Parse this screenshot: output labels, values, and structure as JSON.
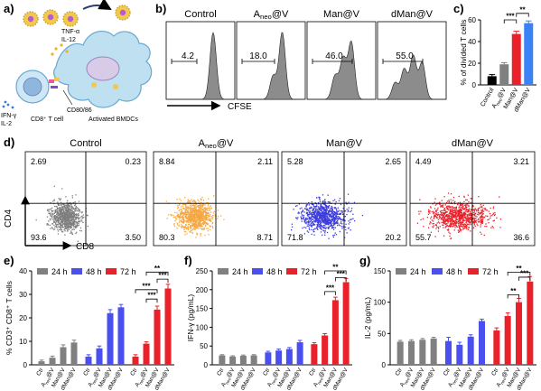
{
  "panel_labels": [
    "a)",
    "b)",
    "c)",
    "d)",
    "e)",
    "f)",
    "g)"
  ],
  "schematic": {
    "labels": {
      "tnf": "TNF-α",
      "il12": "IL-12",
      "ifng": "IFN-γ",
      "il2": "IL-2",
      "cd8t": "CD8⁺ T cell",
      "cd80": "CD80/86",
      "bmdc": "Activated BMDCs"
    }
  },
  "histograms": {
    "axis_label": "CFSE",
    "panels": [
      {
        "title": "Control",
        "pct": "4.2"
      },
      {
        "title": "Aneo@V",
        "pct": "18.0"
      },
      {
        "title": "Man@V",
        "pct": "46.0"
      },
      {
        "title": "dMan@V",
        "pct": "55.0"
      }
    ]
  },
  "scatter": {
    "x_label": "CD8",
    "y_label": "CD4",
    "panels": [
      {
        "title": "Control",
        "color": "#7f7f7f",
        "q": [
          "2.69",
          "0.23",
          "93.6",
          "3.50"
        ]
      },
      {
        "title": "Aneo@V",
        "color": "#f5a742",
        "q": [
          "8.84",
          "2.11",
          "80.3",
          "8.71"
        ]
      },
      {
        "title": "Man@V",
        "color": "#3b3bde",
        "q": [
          "5.28",
          "2.65",
          "71.8",
          "20.2"
        ]
      },
      {
        "title": "dMan@V",
        "color": "#e8212a",
        "q": [
          "4.49",
          "3.21",
          "55.7",
          "36.6"
        ]
      }
    ]
  },
  "chart_data": [
    {
      "id": "c",
      "type": "bar",
      "ylabel": "% of divided T cells",
      "ylim": [
        0,
        60
      ],
      "yticks": [
        0,
        20,
        40,
        60
      ],
      "categories": [
        "Control",
        "Aneo@V",
        "Man@V",
        "dMan@V"
      ],
      "values": [
        8,
        19,
        47,
        57
      ],
      "errors": [
        1.5,
        1.5,
        2.5,
        2
      ],
      "colors": [
        "#000000",
        "#808080",
        "#e8212a",
        "#3b82f6"
      ],
      "significance": [
        "***",
        "**"
      ]
    },
    {
      "id": "e",
      "type": "bar",
      "ylabel": "% CD3⁺ CD8⁺ T cells",
      "ylim": [
        0,
        40
      ],
      "yticks": [
        0,
        10,
        20,
        30,
        40
      ],
      "legend": [
        "24 h",
        "48 h",
        "72 h"
      ],
      "legend_colors": [
        "#808080",
        "#4a4ff0",
        "#e8212a"
      ],
      "categories": [
        "Ctr",
        "Aneo@V",
        "Man@V",
        "dMan@V",
        "Ctr",
        "Aneo@V",
        "Man@V",
        "dMan@V",
        "Ctr",
        "Aneo@V",
        "Man@V",
        "dMan@V"
      ],
      "groups": [
        0,
        0,
        0,
        0,
        1,
        1,
        1,
        1,
        2,
        2,
        2,
        2
      ],
      "values": [
        1.5,
        3,
        7.5,
        9.5,
        3.5,
        7,
        22,
        24.5,
        3.5,
        9,
        23.5,
        32.5
      ],
      "errors": [
        0.5,
        0.7,
        1,
        1,
        0.8,
        1,
        1.5,
        1.2,
        0.8,
        0.8,
        1.5,
        1.8
      ],
      "significance": [
        "***",
        "**",
        "***",
        "***"
      ]
    },
    {
      "id": "f",
      "type": "bar",
      "ylabel": "IFN-γ (pg/mL)",
      "ylim": [
        0,
        250
      ],
      "yticks": [
        0,
        50,
        100,
        150,
        200,
        250
      ],
      "legend": [
        "24 h",
        "48 h",
        "72 h"
      ],
      "legend_colors": [
        "#808080",
        "#4a4ff0",
        "#e8212a"
      ],
      "categories": [
        "Ctr",
        "Aneo@V",
        "Man@V",
        "dMan@V",
        "Ctr",
        "Aneo@V",
        "Man@V",
        "dMan@V",
        "Ctr",
        "Aneo@V",
        "Man@V",
        "dMan@V"
      ],
      "groups": [
        0,
        0,
        0,
        0,
        1,
        1,
        1,
        1,
        2,
        2,
        2,
        2
      ],
      "values": [
        25,
        22,
        24,
        25,
        33,
        38,
        42,
        60,
        55,
        78,
        172,
        220
      ],
      "errors": [
        2,
        2,
        2,
        2,
        3,
        4,
        4,
        5,
        4,
        5,
        8,
        10
      ],
      "significance": [
        "***",
        "**",
        "***"
      ]
    },
    {
      "id": "g",
      "type": "bar",
      "ylabel": "IL-2 (pg/mL)",
      "ylim": [
        0,
        150
      ],
      "yticks": [
        0,
        50,
        100,
        150
      ],
      "legend": [
        "24 h",
        "48 h",
        "72 h"
      ],
      "legend_colors": [
        "#808080",
        "#4a4ff0",
        "#e8212a"
      ],
      "categories": [
        "Ctr",
        "Aneo@V",
        "Man@V",
        "dMan@V",
        "Ctr",
        "Aneo@V",
        "Man@V",
        "dMan@V",
        "Ctr",
        "Aneo@V",
        "Man@V",
        "dMan@V"
      ],
      "groups": [
        0,
        0,
        0,
        0,
        1,
        1,
        1,
        1,
        2,
        2,
        2,
        2
      ],
      "values": [
        37,
        38,
        40,
        42,
        38,
        32,
        45,
        70,
        55,
        78,
        100,
        133
      ],
      "errors": [
        2,
        2,
        2,
        2,
        6,
        4,
        3,
        3,
        4,
        5,
        6,
        8
      ],
      "significance": [
        "**",
        "***",
        "**"
      ]
    }
  ]
}
